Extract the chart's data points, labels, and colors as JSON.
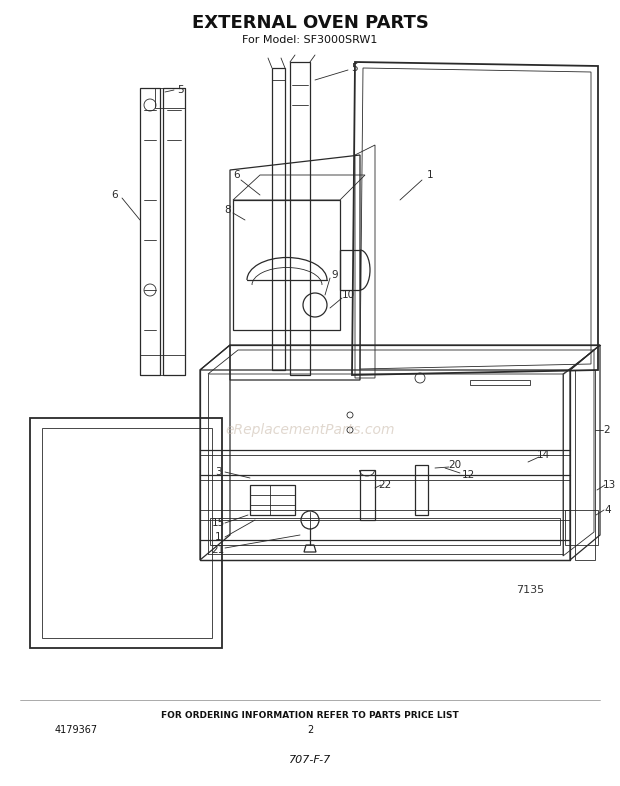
{
  "title": "EXTERNAL OVEN PARTS",
  "subtitle": "For Model: SF3000SRW1",
  "footer_text": "FOR ORDERING INFORMATION REFER TO PARTS PRICE LIST",
  "page_number": "2",
  "part_number_left": "4179367",
  "doc_number": "707-F-7",
  "ref_number": "7135",
  "bg_color": "#ffffff",
  "title_fontsize": 13,
  "subtitle_fontsize": 8,
  "watermark_text": "eReplacementParts.com",
  "watermark_color": "#c8b8a8",
  "watermark_alpha": 0.55,
  "watermark_fontsize": 10
}
